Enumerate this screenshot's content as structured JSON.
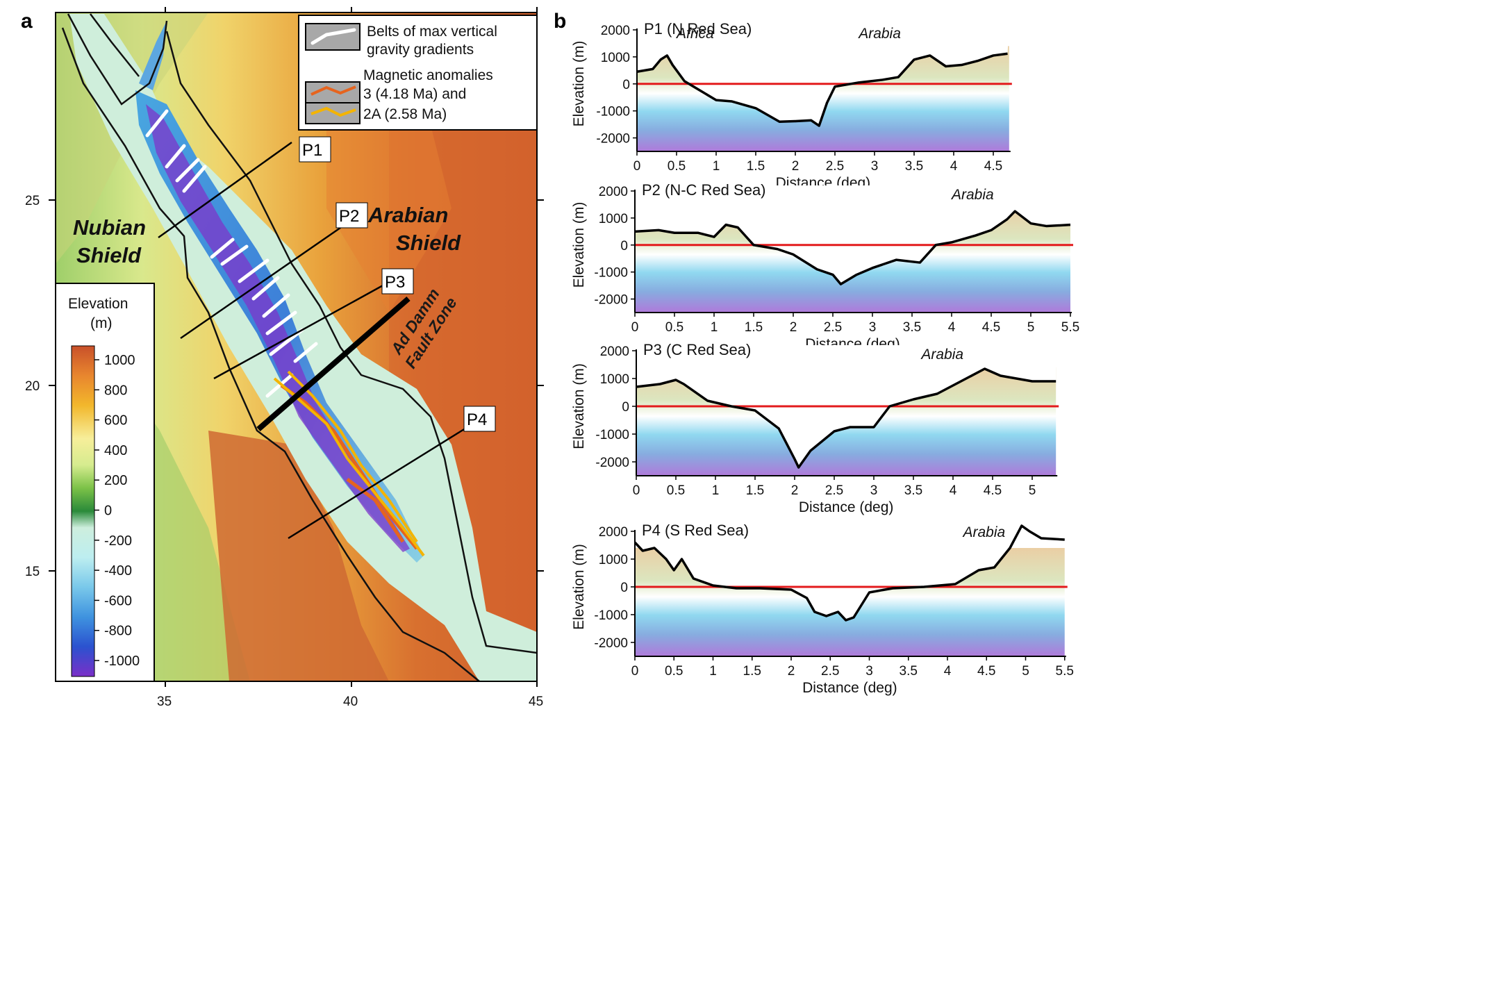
{
  "panel_a": {
    "letter": "a",
    "x_ticks": [
      "35",
      "40",
      "45"
    ],
    "y_ticks": [
      "25",
      "20",
      "15"
    ],
    "legend": {
      "gravity": "Belts of max vertical gravity gradients",
      "gravity_lines": [
        "Belts of max vertical",
        "gravity gradients"
      ],
      "magnetic": "Magnetic anomalies 3 (4.18 Ma) and 2A (2.58 Ma)",
      "magnetic_lines": [
        "Magnetic anomalies",
        "3 (4.18 Ma) and",
        "2A (2.58 Ma)"
      ]
    },
    "labels": {
      "nubian": [
        "Nubian",
        "Shield"
      ],
      "arabian": [
        "Arabian",
        "Shield"
      ],
      "fault": [
        "Ad Damm",
        "Fault Zone"
      ]
    },
    "profiles": [
      "P1",
      "P2",
      "P3",
      "P4"
    ],
    "colorbar": {
      "title": [
        "Elevation",
        "(m)"
      ],
      "ticks": [
        "1000",
        "800",
        "600",
        "400",
        "200",
        "0",
        "-200",
        "-400",
        "-600",
        "-800",
        "-1000"
      ],
      "stops": [
        "#c8502a",
        "#e8862e",
        "#f2b72c",
        "#f7ee9a",
        "#d6ec8f",
        "#7cc248",
        "#2a8a3a",
        "#cdeedd",
        "#bdeef0",
        "#79c8ea",
        "#3f93df",
        "#2b52cf",
        "#7a2fc8"
      ]
    }
  },
  "panel_b": {
    "letter": "b",
    "profiles": [
      {
        "title": "P1 (N Red Sea)",
        "labels": [
          "Africa",
          "Arabia"
        ],
        "x_ticks": [
          "0",
          "0.5",
          "1",
          "1.5",
          "2",
          "2.5",
          "3",
          "3.5",
          "4",
          "4.5"
        ],
        "y_ticks": [
          "2000",
          "1000",
          "0",
          "-1000",
          "-2000"
        ],
        "xlabel": "Distance (deg)",
        "ylabel": "Elevation (m)"
      },
      {
        "title": "P2 (N-C Red Sea)",
        "labels": [
          "Arabia"
        ],
        "x_ticks": [
          "0",
          "0.5",
          "1",
          "1.5",
          "2",
          "2.5",
          "3",
          "3.5",
          "4",
          "4.5",
          "5",
          "5.5"
        ],
        "y_ticks": [
          "2000",
          "1000",
          "0",
          "-1000",
          "-2000"
        ],
        "xlabel": "Distance (deg)",
        "ylabel": "Elevation (m)"
      },
      {
        "title": "P3 (C Red Sea)",
        "labels": [
          "Arabia"
        ],
        "x_ticks": [
          "0",
          "0.5",
          "1",
          "1.5",
          "2",
          "2.5",
          "3",
          "3.5",
          "4",
          "4.5",
          "5"
        ],
        "y_ticks": [
          "2000",
          "1000",
          "0",
          "-1000",
          "-2000"
        ],
        "xlabel": "Distance (deg)",
        "ylabel": "Elevation (m)"
      },
      {
        "title": "P4 (S Red Sea)",
        "labels": [
          "Arabia"
        ],
        "x_ticks": [
          "0",
          "0.5",
          "1",
          "1.5",
          "2",
          "2.5",
          "3",
          "3.5",
          "4",
          "4.5",
          "5",
          "5.5"
        ],
        "y_ticks": [
          "2000",
          "1000",
          "0",
          "-1000",
          "-2000"
        ],
        "xlabel": "Distance (deg)",
        "ylabel": "Elevation (m)"
      }
    ]
  },
  "chart_data": [
    {
      "type": "area",
      "title": "P1 (N Red Sea)",
      "xlabel": "Distance (deg)",
      "ylabel": "Elevation (m)",
      "xlim": [
        0,
        4.7
      ],
      "ylim": [
        -2500,
        2000
      ],
      "x": [
        0,
        0.2,
        0.3,
        0.38,
        0.45,
        0.6,
        0.8,
        1.0,
        1.2,
        1.5,
        1.8,
        2.0,
        2.2,
        2.3,
        2.4,
        2.5,
        2.8,
        3.1,
        3.3,
        3.5,
        3.7,
        3.9,
        4.1,
        4.3,
        4.5,
        4.68
      ],
      "y": [
        450,
        550,
        900,
        1050,
        700,
        100,
        -250,
        -600,
        -650,
        -900,
        -1400,
        -1380,
        -1350,
        -1550,
        -700,
        -100,
        50,
        150,
        250,
        900,
        1050,
        650,
        700,
        850,
        1050,
        1120
      ],
      "baseline": 0
    },
    {
      "type": "area",
      "title": "P2 (N-C Red Sea)",
      "xlabel": "Distance (deg)",
      "ylabel": "Elevation (m)",
      "xlim": [
        0,
        5.5
      ],
      "ylim": [
        -2500,
        2000
      ],
      "x": [
        0,
        0.3,
        0.5,
        0.8,
        1.0,
        1.15,
        1.3,
        1.5,
        1.8,
        2.0,
        2.3,
        2.5,
        2.6,
        2.8,
        3.0,
        3.3,
        3.6,
        3.8,
        4.0,
        4.3,
        4.5,
        4.7,
        4.8,
        5.0,
        5.2,
        5.5
      ],
      "y": [
        500,
        550,
        450,
        450,
        300,
        750,
        650,
        0,
        -150,
        -350,
        -900,
        -1100,
        -1450,
        -1100,
        -850,
        -550,
        -650,
        0,
        100,
        350,
        550,
        950,
        1250,
        800,
        700,
        750
      ],
      "baseline": 0
    },
    {
      "type": "area",
      "title": "P3 (C Red Sea)",
      "xlabel": "Distance (deg)",
      "ylabel": "Elevation (m)",
      "xlim": [
        0,
        5.3
      ],
      "ylim": [
        -2500,
        2000
      ],
      "x": [
        0,
        0.3,
        0.5,
        0.6,
        0.9,
        1.2,
        1.5,
        1.8,
        2.0,
        2.05,
        2.2,
        2.5,
        2.7,
        3.0,
        3.2,
        3.5,
        3.8,
        4.1,
        4.4,
        4.6,
        5.0,
        5.3
      ],
      "y": [
        700,
        800,
        950,
        800,
        200,
        0,
        -150,
        -800,
        -1900,
        -2200,
        -1600,
        -900,
        -750,
        -750,
        0,
        250,
        450,
        900,
        1350,
        1100,
        900,
        900
      ],
      "baseline": 0
    },
    {
      "type": "area",
      "title": "P4 (S Red Sea)",
      "xlabel": "Distance (deg)",
      "ylabel": "Elevation (m)",
      "xlim": [
        0,
        5.5
      ],
      "ylim": [
        -2500,
        2000
      ],
      "x": [
        0,
        0.1,
        0.25,
        0.4,
        0.5,
        0.6,
        0.75,
        1.0,
        1.3,
        1.6,
        2.0,
        2.2,
        2.3,
        2.45,
        2.6,
        2.7,
        2.8,
        3.0,
        3.3,
        3.7,
        4.1,
        4.4,
        4.6,
        4.8,
        4.95,
        5.05,
        5.2,
        5.5
      ],
      "y": [
        1600,
        1300,
        1400,
        1000,
        600,
        1000,
        300,
        50,
        -50,
        -50,
        -100,
        -400,
        -900,
        -1050,
        -900,
        -1200,
        -1100,
        -200,
        -50,
        0,
        100,
        600,
        700,
        1400,
        2200,
        2000,
        1750,
        1700
      ],
      "baseline": 0
    }
  ]
}
